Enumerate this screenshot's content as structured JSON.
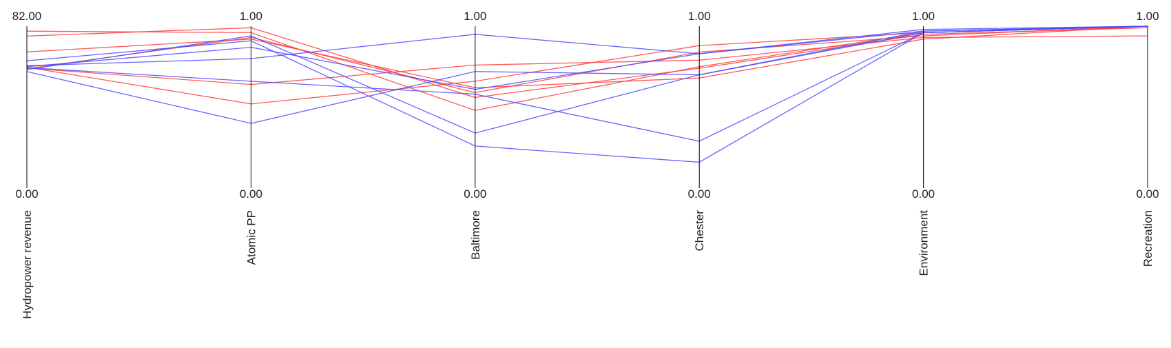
{
  "chart_data": {
    "type": "parallel-coordinates",
    "axes": [
      {
        "label": "Hydropower revenue",
        "max_label": "82.00",
        "min_label": "0.00",
        "range": [
          0,
          82
        ]
      },
      {
        "label": "Atomic PP",
        "max_label": "1.00",
        "min_label": "0.00",
        "range": [
          0,
          1
        ]
      },
      {
        "label": "Baltimore",
        "max_label": "1.00",
        "min_label": "0.00",
        "range": [
          0,
          1
        ]
      },
      {
        "label": "Chester",
        "max_label": "1.00",
        "min_label": "0.00",
        "range": [
          0,
          1
        ]
      },
      {
        "label": "Environment",
        "max_label": "1.00",
        "min_label": "0.00",
        "range": [
          0,
          1
        ]
      },
      {
        "label": "Recreation",
        "max_label": "1.00",
        "min_label": "0.00",
        "range": [
          0,
          1
        ]
      }
    ],
    "colors": {
      "red": "#ff3b3b",
      "blue": "#4a4aff",
      "axis": "#000000"
    },
    "series": [
      {
        "color": "red",
        "values": [
          77.0,
          0.99,
          0.56,
          0.74,
          0.95,
          0.99
        ]
      },
      {
        "color": "red",
        "values": [
          79.5,
          0.96,
          0.48,
          0.75,
          0.96,
          1.0
        ]
      },
      {
        "color": "red",
        "values": [
          69.0,
          0.92,
          0.62,
          0.68,
          0.92,
          1.0
        ]
      },
      {
        "color": "red",
        "values": [
          61.2,
          0.52,
          0.66,
          0.88,
          0.96,
          1.0
        ]
      },
      {
        "color": "red",
        "values": [
          60.8,
          0.64,
          0.76,
          0.79,
          0.93,
          0.94
        ]
      },
      {
        "color": "red",
        "values": [
          60.5,
          0.93,
          0.59,
          0.84,
          0.94,
          1.0
        ]
      },
      {
        "color": "blue",
        "values": [
          62.0,
          0.8,
          0.95,
          0.83,
          0.98,
          1.0
        ]
      },
      {
        "color": "blue",
        "values": [
          61.0,
          0.66,
          0.58,
          0.29,
          0.96,
          1.0
        ]
      },
      {
        "color": "blue",
        "values": [
          60.0,
          0.94,
          0.34,
          0.7,
          0.97,
          1.0
        ]
      },
      {
        "color": "blue",
        "values": [
          59.0,
          0.4,
          0.72,
          0.7,
          0.96,
          1.0
        ]
      },
      {
        "color": "blue",
        "values": [
          64.5,
          0.91,
          0.26,
          0.16,
          0.96,
          1.0
        ]
      },
      {
        "color": "blue",
        "values": [
          61.5,
          0.87,
          0.61,
          0.83,
          0.97,
          1.0
        ]
      }
    ]
  }
}
